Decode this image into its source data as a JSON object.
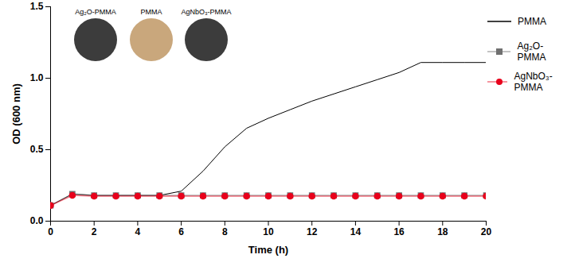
{
  "chart_data": {
    "type": "line",
    "xlabel": "Time (h)",
    "ylabel": "OD (600 nm)",
    "x": [
      0,
      1,
      2,
      3,
      4,
      5,
      6,
      7,
      8,
      9,
      10,
      11,
      12,
      13,
      14,
      15,
      16,
      17,
      18,
      19,
      20
    ],
    "series": [
      {
        "name": "PMMA",
        "color": "#000000",
        "marker": "none",
        "line_style": "solid",
        "values": [
          0.11,
          0.19,
          0.18,
          0.18,
          0.18,
          0.18,
          0.21,
          0.35,
          0.52,
          0.65,
          0.72,
          0.78,
          0.84,
          0.89,
          0.94,
          0.99,
          1.04,
          1.11,
          1.11,
          1.11,
          1.11
        ]
      },
      {
        "name": "Ag₂O-PMMA",
        "color": "#707070",
        "marker": "square",
        "line_style": "solid",
        "values": [
          0.11,
          0.19,
          0.18,
          0.18,
          0.18,
          0.18,
          0.18,
          0.18,
          0.18,
          0.18,
          0.18,
          0.18,
          0.18,
          0.18,
          0.18,
          0.18,
          0.18,
          0.18,
          0.18,
          0.18,
          0.18
        ]
      },
      {
        "name": "AgNbO₃-PMMA",
        "color": "#e8001c",
        "marker": "circle",
        "line_style": "solid",
        "values": [
          0.11,
          0.18,
          0.175,
          0.175,
          0.175,
          0.175,
          0.175,
          0.175,
          0.175,
          0.175,
          0.175,
          0.175,
          0.175,
          0.175,
          0.175,
          0.175,
          0.175,
          0.175,
          0.175,
          0.175,
          0.175
        ]
      }
    ],
    "xlim": [
      0,
      20
    ],
    "xticks": [
      0,
      2,
      4,
      6,
      8,
      10,
      12,
      14,
      16,
      18,
      20
    ],
    "ylim": [
      0,
      1.5
    ],
    "yticks": [
      {
        "value": 0,
        "label": "0.0"
      },
      0.5,
      {
        "value": 1,
        "label": "1.0"
      },
      1.5
    ],
    "grid": false,
    "legend": "right",
    "annotations": [
      {
        "text": "Ag₂O-PMMA",
        "color": "#3c3c3c"
      },
      {
        "text": "PMMA",
        "color": "#c9a77c"
      },
      {
        "text": "AgNbO₃-PMMA",
        "color": "#3c3c3c"
      }
    ]
  }
}
